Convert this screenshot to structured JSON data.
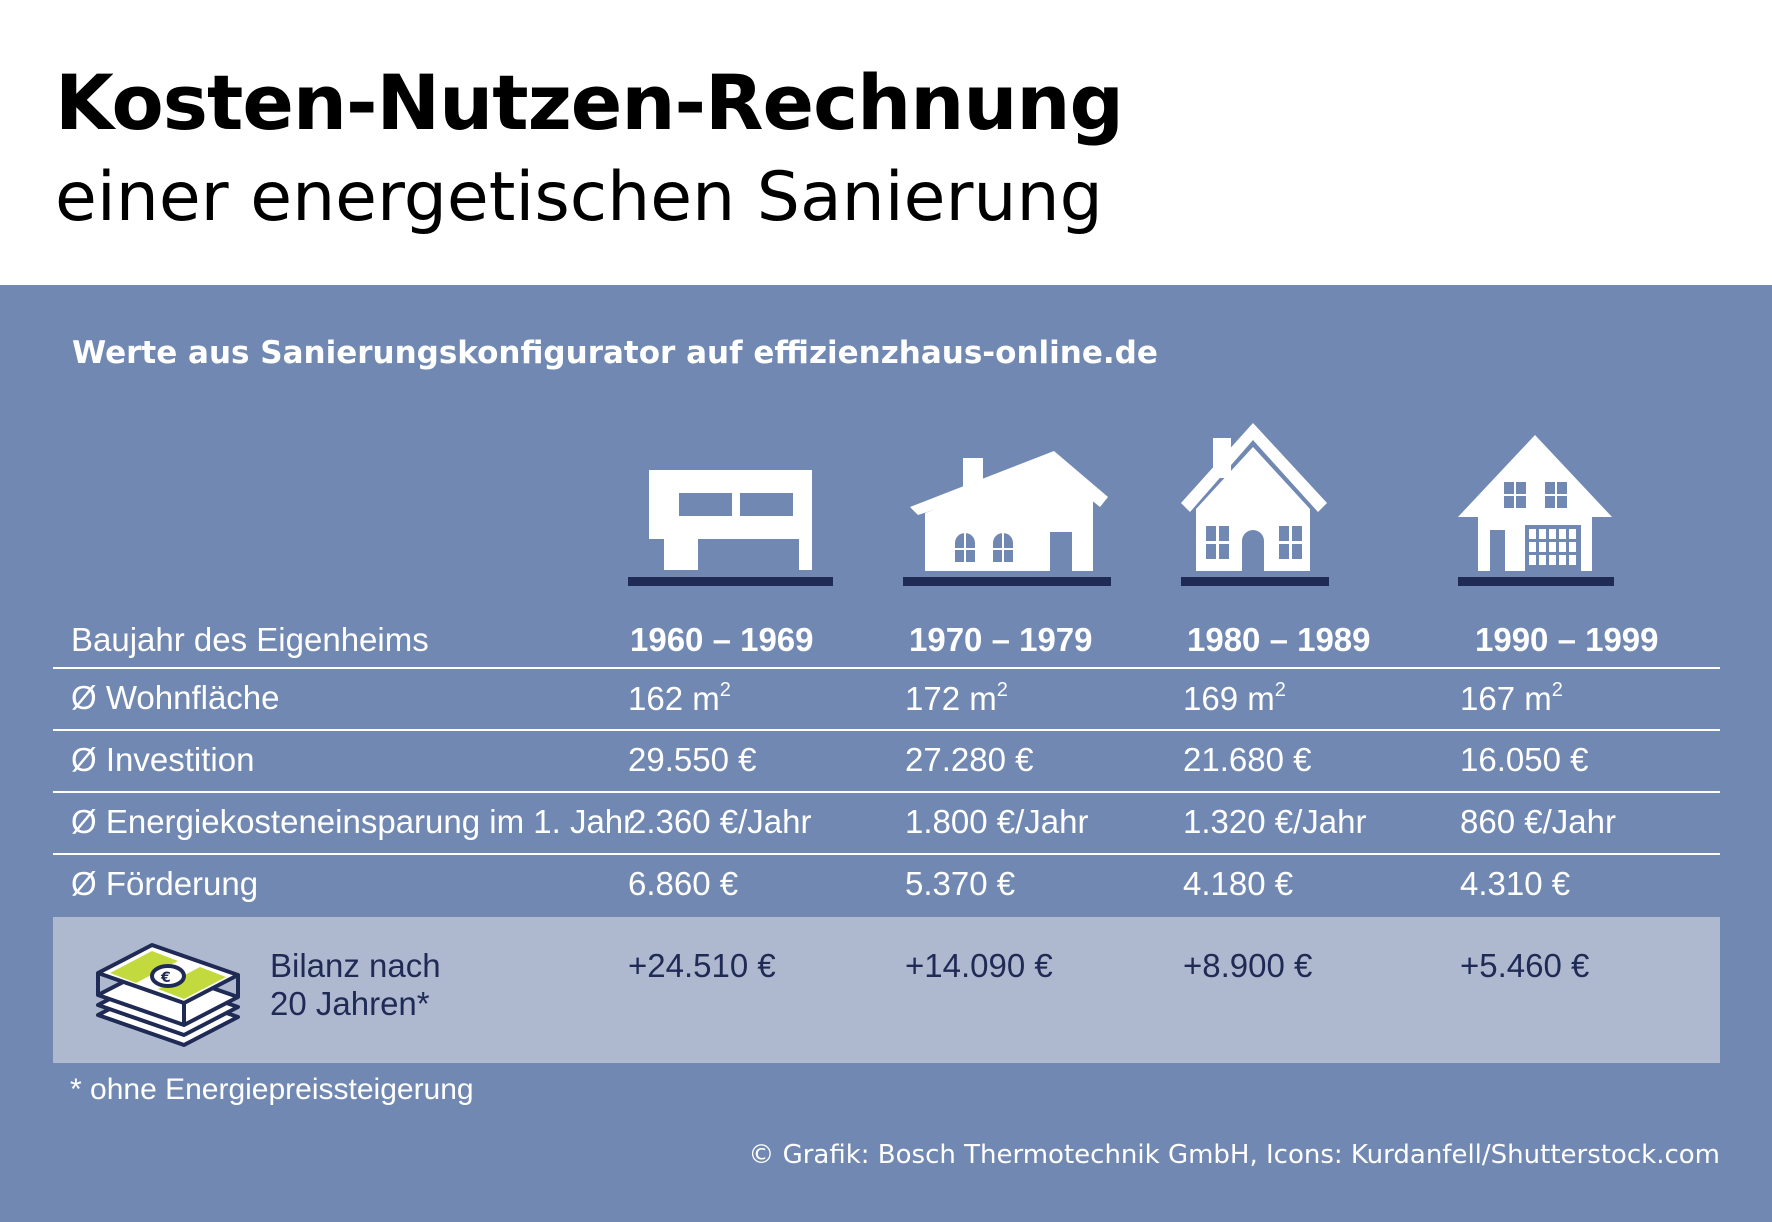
{
  "header": {
    "title": "Kosten-Nutzen-Rechnung",
    "subtitle": "einer energetischen Sanierung"
  },
  "source": "Werte aus Sanierungskonfigurator auf effizienzhaus-online.de",
  "colors": {
    "panel": "#7189b2",
    "highlight_row": "#aeb9d0",
    "icon_dark": "#1f2a55",
    "money_green": "#c3da3f"
  },
  "house_icons": [
    "modern-bungalow-icon",
    "bungalow-icon",
    "gabled-house-icon",
    "two-storey-house-icon"
  ],
  "table": {
    "rows": [
      {
        "label": "Baujahr des Eigenheims",
        "values": [
          "1960 – 1969",
          "1970 – 1979",
          "1980 – 1989",
          "1990 – 1999"
        ]
      },
      {
        "label": "Ø Wohnfläche",
        "values": [
          "162 m",
          "172 m",
          "169 m",
          "167 m"
        ],
        "unit_sup": "2"
      },
      {
        "label": "Ø Investition",
        "values": [
          "29.550 €",
          "27.280 €",
          "21.680 €",
          "16.050 €"
        ]
      },
      {
        "label": "Ø Energiekosteneinsparung im 1. Jahr",
        "values": [
          "2.360 €/Jahr",
          "1.800 €/Jahr",
          "1.320 €/Jahr",
          "860 €/Jahr"
        ]
      },
      {
        "label": "Ø Förderung",
        "values": [
          "6.860 €",
          "5.370 €",
          "4.180 €",
          "4.310 €"
        ]
      }
    ],
    "balance": {
      "label_line1": "Bilanz nach",
      "label_line2": "20 Jahren*",
      "icon": "money-stack-icon",
      "values": [
        "+24.510 €",
        "+14.090 €",
        "+8.900 €",
        "+5.460 €"
      ]
    }
  },
  "footnote": "* ohne Energiepreissteigerung",
  "credit": "© Grafik: Bosch Thermotechnik GmbH, Icons: Kurdanfell/Shutterstock.com"
}
